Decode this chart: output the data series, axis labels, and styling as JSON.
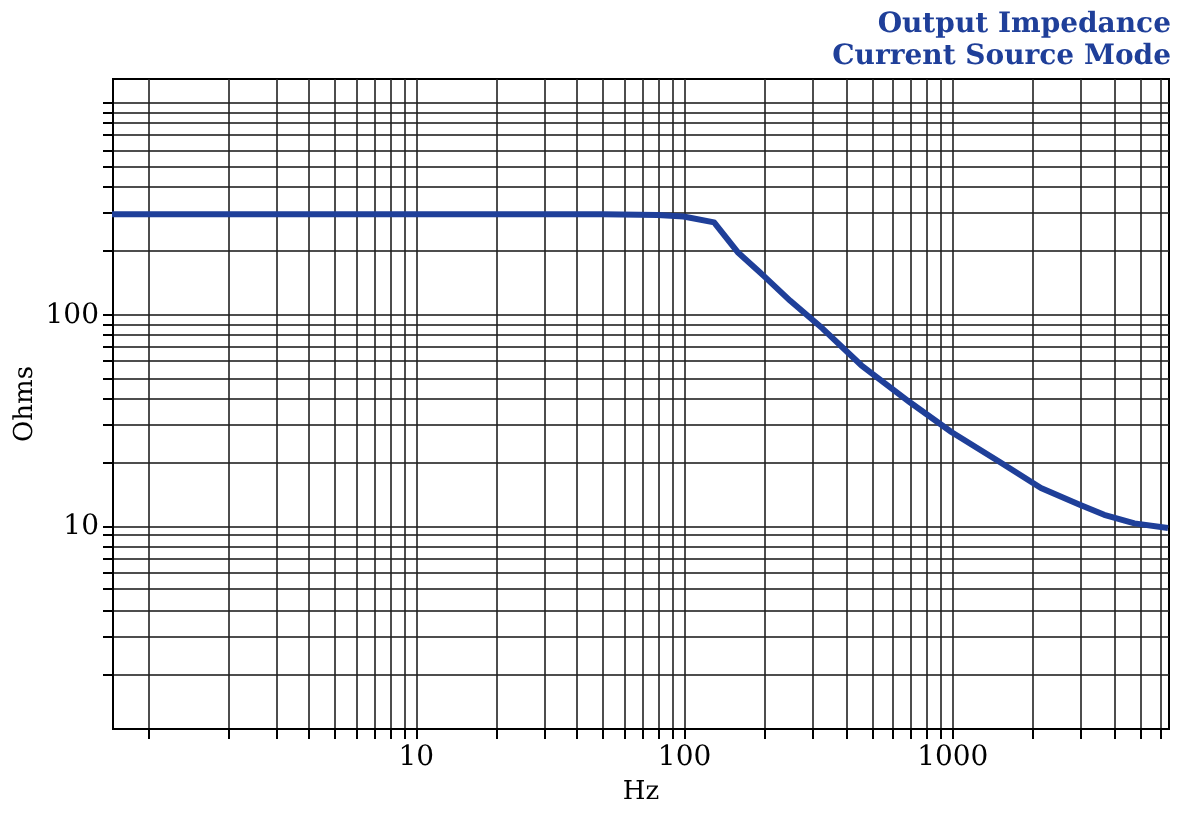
{
  "chart_data": {
    "type": "line",
    "title": [
      "Output Impedance",
      "Current Source Mode"
    ],
    "xlabel": "Hz",
    "ylabel": "Ohms",
    "log": "xy",
    "grid": true,
    "marker": "none",
    "line_style": "solid",
    "xlim": [
      0.74,
      6400
    ],
    "ylim": [
      1.1,
      1300
    ],
    "xticks": [
      {
        "value": 1,
        "label": null
      },
      {
        "value": 2,
        "label": null
      },
      {
        "value": 3,
        "label": null
      },
      {
        "value": 4,
        "label": null
      },
      {
        "value": 5,
        "label": null
      },
      {
        "value": 6,
        "label": null
      },
      {
        "value": 7,
        "label": null
      },
      {
        "value": 8,
        "label": null
      },
      {
        "value": 9,
        "label": null
      },
      10,
      {
        "value": 20,
        "label": null
      },
      {
        "value": 30,
        "label": null
      },
      {
        "value": 40,
        "label": null
      },
      {
        "value": 50,
        "label": null
      },
      {
        "value": 60,
        "label": null
      },
      {
        "value": 70,
        "label": null
      },
      {
        "value": 80,
        "label": null
      },
      {
        "value": 90,
        "label": null
      },
      100,
      {
        "value": 200,
        "label": null
      },
      {
        "value": 300,
        "label": null
      },
      {
        "value": 400,
        "label": null
      },
      {
        "value": 500,
        "label": null
      },
      {
        "value": 600,
        "label": null
      },
      {
        "value": 700,
        "label": null
      },
      {
        "value": 800,
        "label": null
      },
      {
        "value": 900,
        "label": null
      },
      1000,
      {
        "value": 2000,
        "label": null
      },
      {
        "value": 3000,
        "label": null
      },
      {
        "value": 4000,
        "label": null
      },
      {
        "value": 5000,
        "label": null
      },
      {
        "value": 6000,
        "label": null
      }
    ],
    "yticks": [
      {
        "value": 2,
        "label": null
      },
      {
        "value": 3,
        "label": null
      },
      {
        "value": 4,
        "label": null
      },
      {
        "value": 5,
        "label": null
      },
      {
        "value": 6,
        "label": null
      },
      {
        "value": 7,
        "label": null
      },
      {
        "value": 8,
        "label": null
      },
      {
        "value": 9,
        "label": null
      },
      10,
      {
        "value": 20,
        "label": null
      },
      {
        "value": 30,
        "label": null
      },
      {
        "value": 40,
        "label": null
      },
      {
        "value": 50,
        "label": null
      },
      {
        "value": 60,
        "label": null
      },
      {
        "value": 70,
        "label": null
      },
      {
        "value": 80,
        "label": null
      },
      {
        "value": 90,
        "label": null
      },
      100,
      {
        "value": 200,
        "label": null
      },
      {
        "value": 300,
        "label": null
      },
      {
        "value": 400,
        "label": null
      },
      {
        "value": 500,
        "label": null
      },
      {
        "value": 600,
        "label": null
      },
      {
        "value": 700,
        "label": null
      },
      {
        "value": 800,
        "label": null
      },
      {
        "value": 900,
        "label": null
      },
      {
        "value": 1000,
        "label": null
      }
    ],
    "series": [
      {
        "color": "#1f3f99",
        "x": [
          0.74,
          10,
          50,
          80,
          100,
          130,
          160,
          200,
          250,
          330,
          460,
          700,
          1000,
          1500,
          2150,
          3000,
          3700,
          4800,
          6400
        ],
        "values": [
          295,
          295,
          295,
          293,
          288,
          270,
          194,
          150,
          115,
          85,
          57,
          38,
          27.5,
          20,
          15,
          12.5,
          11.2,
          10.2,
          9.7
        ]
      }
    ]
  }
}
